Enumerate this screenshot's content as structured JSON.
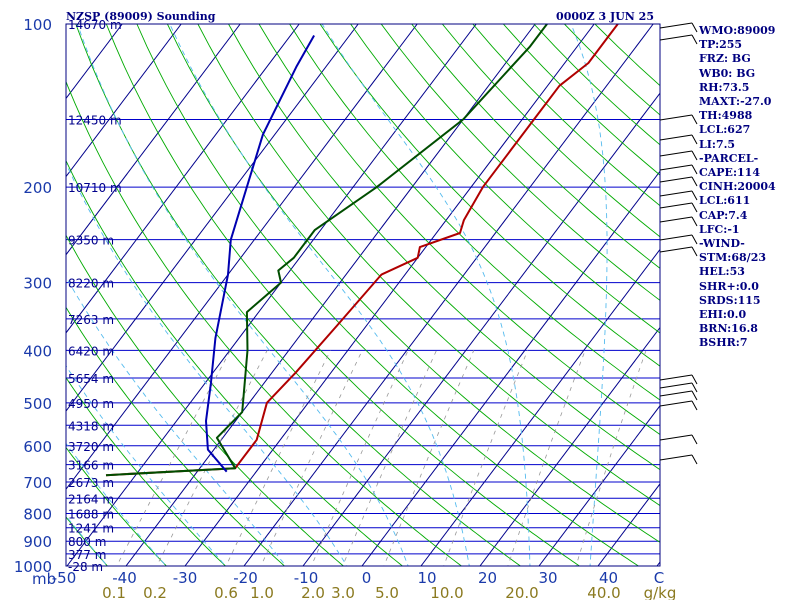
{
  "header": {
    "station": "NZSP (89009) Sounding",
    "time": "0000Z  3 JUN 25"
  },
  "sidebar": {
    "items": [
      "WMO:89009",
      "TP:255",
      "FRZ: BG",
      "WB0: BG",
      "RH:73.5",
      "MAXT:-27.0",
      "TH:4988",
      "LCL:627",
      "LI:7.5",
      "-PARCEL-",
      "CAPE:114",
      "CINH:20004",
      "LCL:611",
      "CAP:7.4",
      "LFC:-1",
      "-WIND-",
      "STM:68/23",
      "HEL:53",
      "SHR+:0.0",
      "SRDS:115",
      "EHI:0.0",
      "BRN:16.8",
      "BSHR:7"
    ]
  },
  "colors": {
    "isobar": "#0000cc",
    "isotherm": "#00008b",
    "dry_adiabat": "#00aa00",
    "moist_adiabat": "#55bbee",
    "mixing_ratio": "#999999",
    "temperature": "#b00000",
    "dewpoint": "#004d00",
    "wetbulb": "#0000b0",
    "label": "#1a3aaa",
    "mix_label": "#8b7a20",
    "text": "#000080"
  },
  "chart_data": {
    "type": "line",
    "title": "NZSP (89009) Sounding",
    "xlabel": "C",
    "ylabel": "mb",
    "skew_t": true,
    "log_pressure_axis": true,
    "pressure_ticks": [
      100,
      200,
      300,
      400,
      500,
      600,
      700,
      800,
      900,
      1000
    ],
    "pressure_axis_unit": "mb",
    "temperature_ticks": [
      -50,
      -40,
      -30,
      -20,
      -10,
      0,
      10,
      20,
      30,
      40
    ],
    "temperature_axis_unit": "C",
    "mixing_ratio_ticks": [
      "0.1",
      "0.2",
      "0.6",
      "1.0",
      "2.0",
      "3.0",
      "5.0",
      "10.0",
      "20.0",
      "40.0"
    ],
    "mixing_ratio_unit": "g/kg",
    "height_labels": [
      {
        "p": 100,
        "label": "14670 m"
      },
      {
        "p": 150,
        "label": "12450 m"
      },
      {
        "p": 200,
        "label": "10710 m"
      },
      {
        "p": 250,
        "label": "9350 m"
      },
      {
        "p": 300,
        "label": "8220 m"
      },
      {
        "p": 350,
        "label": "7263 m"
      },
      {
        "p": 400,
        "label": "6420 m"
      },
      {
        "p": 450,
        "label": "5654 m"
      },
      {
        "p": 500,
        "label": "4950 m"
      },
      {
        "p": 550,
        "label": "4318 m"
      },
      {
        "p": 600,
        "label": "3720 m"
      },
      {
        "p": 650,
        "label": "3166 m"
      },
      {
        "p": 700,
        "label": "2673 m"
      },
      {
        "p": 750,
        "label": "2164 m"
      },
      {
        "p": 800,
        "label": "1688 m"
      },
      {
        "p": 850,
        "label": "1241 m"
      },
      {
        "p": 900,
        "label": "800 m"
      },
      {
        "p": 950,
        "label": "377 m"
      },
      {
        "p": 1000,
        "label": "-28 m"
      }
    ],
    "series": [
      {
        "key": "temperature",
        "p": [
          680,
          660,
          585,
          500,
          440,
          360,
          290,
          270,
          258,
          243,
          230,
          200,
          170,
          150,
          130,
          118,
          105,
          100
        ],
        "t": [
          -55,
          -34,
          -34,
          -37,
          -36,
          -35,
          -34,
          -30,
          -31,
          -26,
          -27,
          -28,
          -28,
          -28,
          -28,
          -26,
          -26,
          -26
        ]
      },
      {
        "key": "dewpoint",
        "p": [
          680,
          660,
          580,
          520,
          400,
          340,
          300,
          285,
          270,
          240,
          200,
          150,
          110,
          100
        ],
        "t": [
          -55,
          -34,
          -41,
          -40,
          -47,
          -52,
          -50,
          -52,
          -51,
          -51,
          -46,
          -40,
          -38,
          -38
        ]
      },
      {
        "key": "wetbulb",
        "p": [
          670,
          610,
          540,
          460,
          380,
          290,
          250,
          200,
          160,
          120,
          105
        ],
        "t": [
          -35,
          -41,
          -45,
          -49,
          -54,
          -60,
          -64,
          -68,
          -72,
          -75,
          -76
        ]
      }
    ]
  }
}
